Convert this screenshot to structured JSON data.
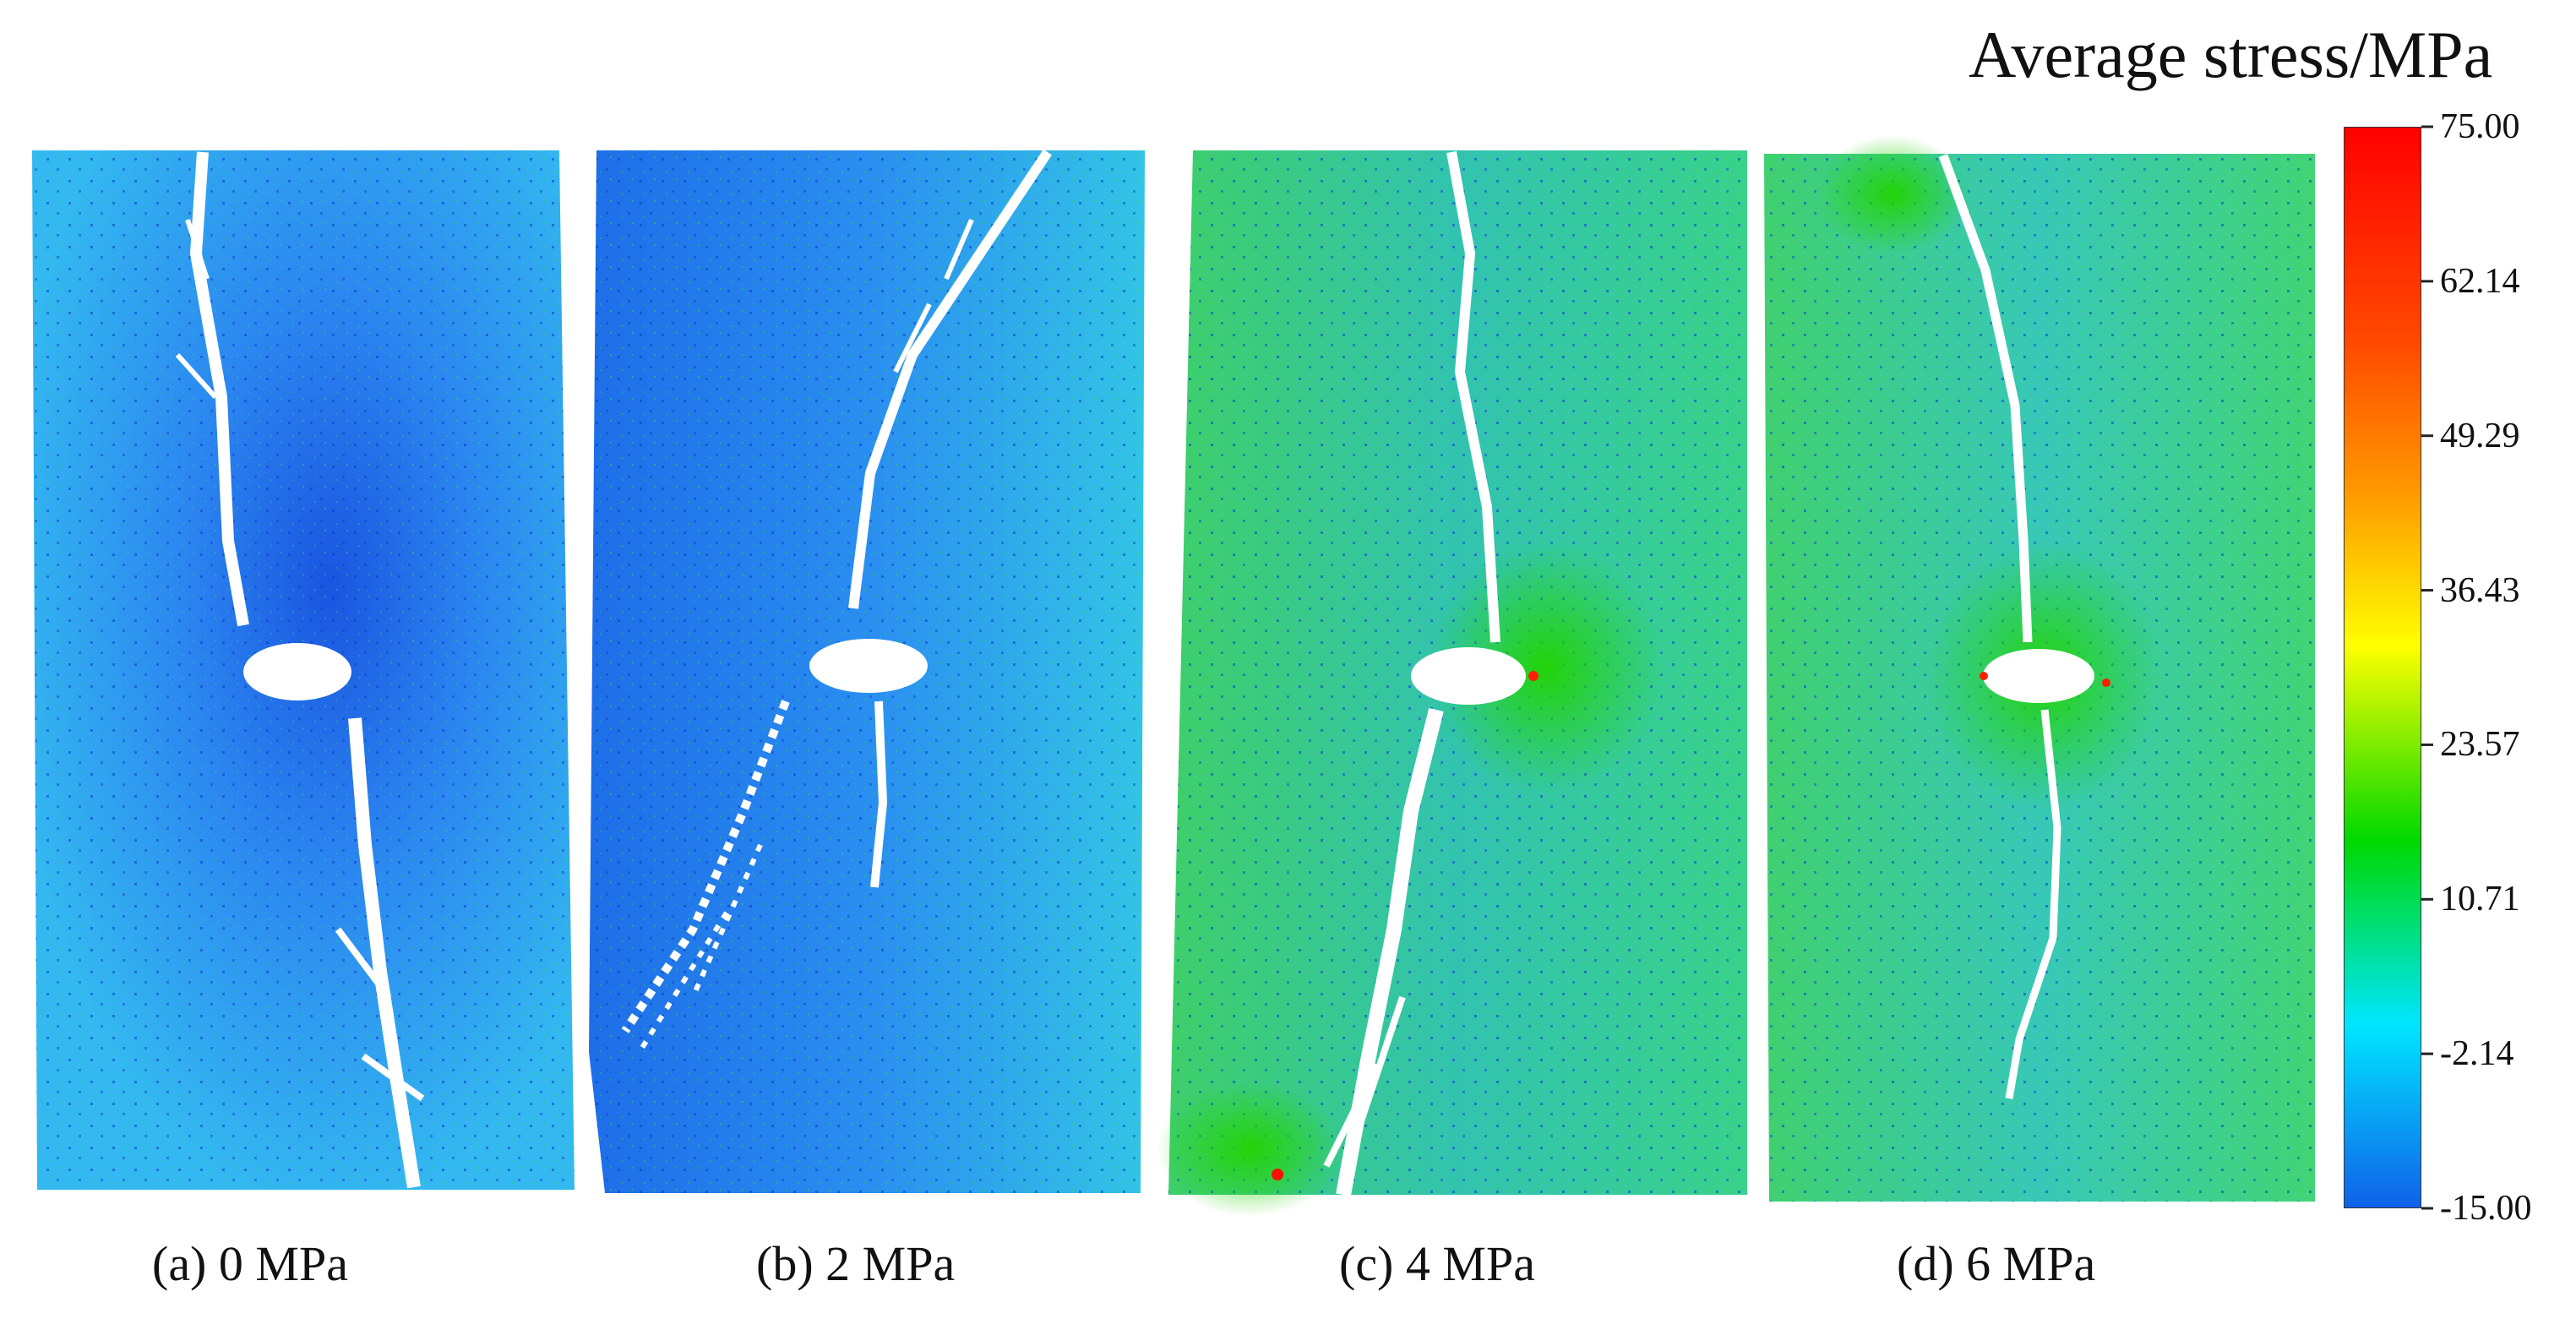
{
  "legend": {
    "title": "Average stress/MPa",
    "ticks": [
      "75.00",
      "62.14",
      "49.29",
      "36.43",
      "23.57",
      "10.71",
      "-2.14",
      "-15.00"
    ],
    "colormap": [
      "#ff0000",
      "#ff9000",
      "#ffff00",
      "#00dd00",
      "#00e5ff",
      "#1060e8"
    ]
  },
  "panels": [
    {
      "label": "(a)  0 MPa",
      "confining_pressure_MPa": 0
    },
    {
      "label": "(b)  2 MPa",
      "confining_pressure_MPa": 2
    },
    {
      "label": "(c)  4 MPa",
      "confining_pressure_MPa": 4
    },
    {
      "label": "(d)  6 MPa",
      "confining_pressure_MPa": 6
    }
  ]
}
